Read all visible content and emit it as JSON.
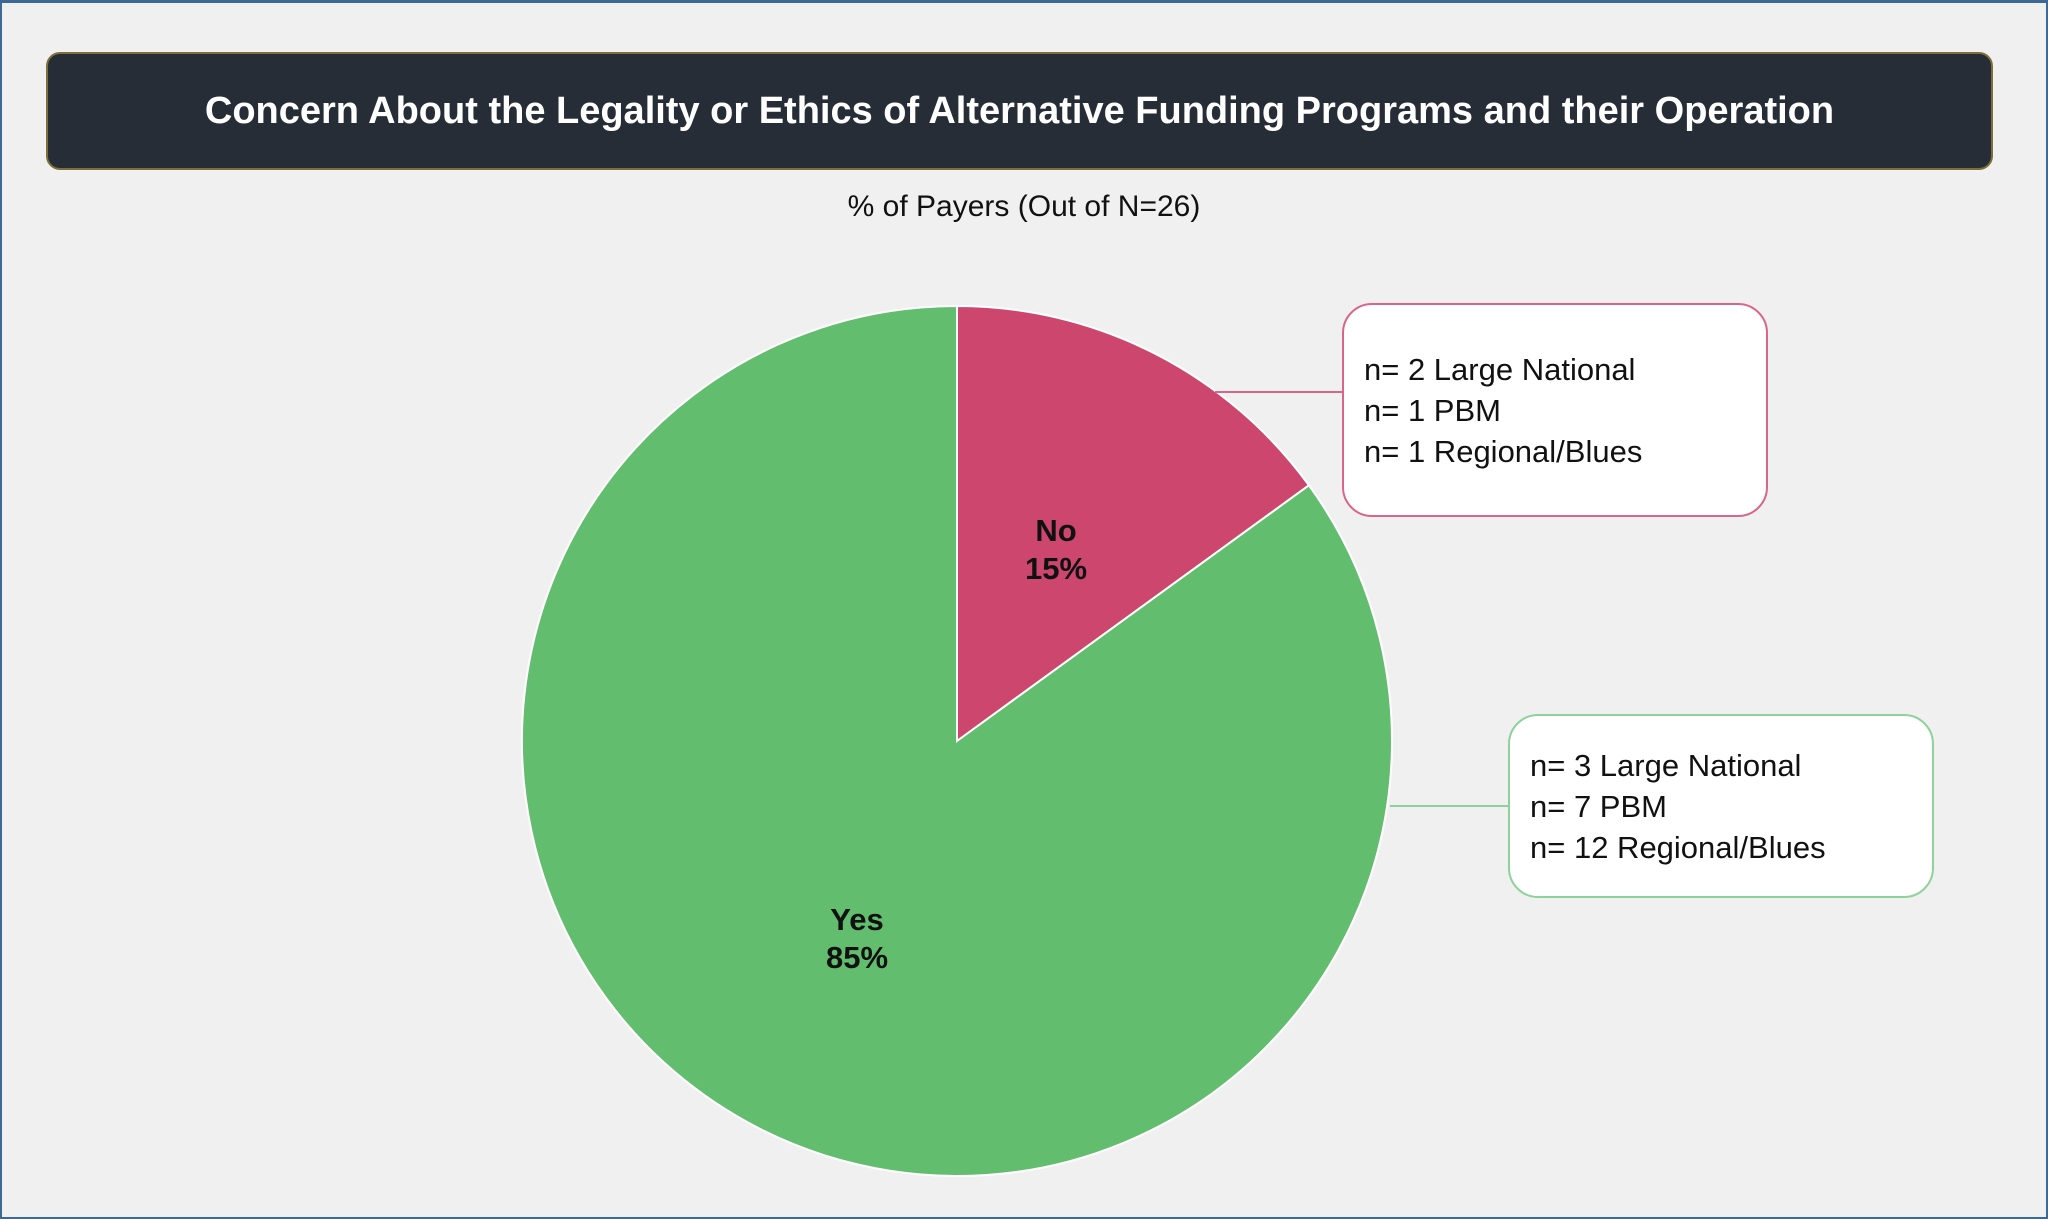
{
  "chart_data": {
    "type": "pie",
    "title": "Concern About the Legality or Ethics of Alternative Funding Programs and their Operation",
    "subtitle": "% of Payers (Out of N=26)",
    "slices": [
      {
        "label": "No",
        "value": 15,
        "value_label": "15%",
        "color": "#cc466e",
        "callout": [
          "n= 2 Large National",
          "n= 1 PBM",
          "n= 1 Regional/Blues"
        ],
        "callout_border": "#d9668a"
      },
      {
        "label": "Yes",
        "value": 85,
        "value_label": "85%",
        "color": "#63bd6e",
        "callout": [
          "n= 3 Large National",
          "n= 7 PBM",
          "n= 12 Regional/Blues"
        ],
        "callout_border": "#8fd19a"
      }
    ],
    "start": "12 o'clock",
    "direction": "clockwise"
  }
}
